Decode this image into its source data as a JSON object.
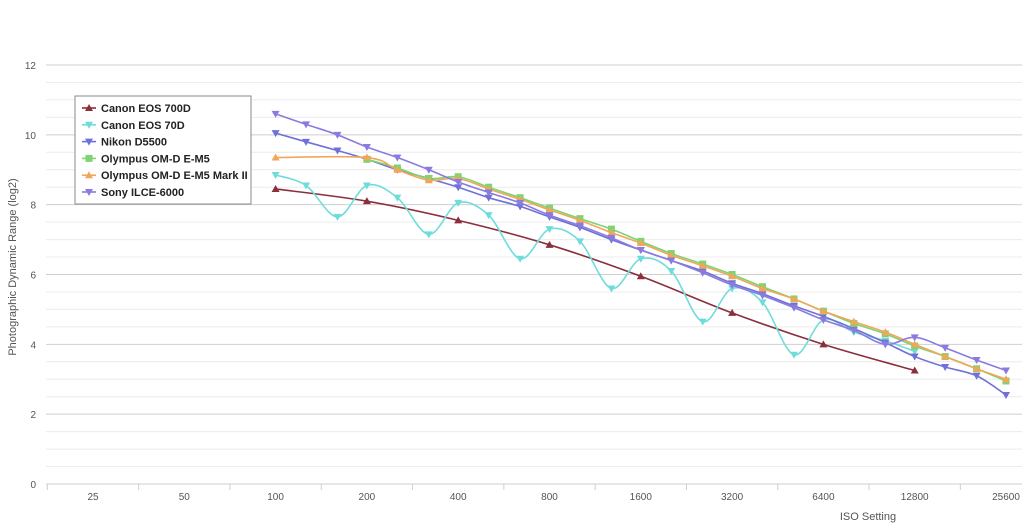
{
  "chart_data": {
    "type": "line",
    "title": "",
    "xlabel": "ISO Setting",
    "ylabel": "Photographic Dynamic Range (log2)",
    "x_scale": "log2",
    "x_ticks": [
      25,
      50,
      100,
      200,
      400,
      800,
      1600,
      3200,
      6400,
      12800,
      25600
    ],
    "x_tick_labels": [
      "25",
      "50",
      "100",
      "200",
      "400",
      "800",
      "1600",
      "3200",
      "6400",
      "12800",
      "25600"
    ],
    "ylim": [
      0,
      12
    ],
    "y_ticks": [
      0,
      2,
      4,
      6,
      8,
      10,
      12
    ],
    "y_tick_labels": [
      "0",
      "2",
      "4",
      "6",
      "8",
      "10",
      "12"
    ],
    "grid": true,
    "legend_position": "top-left",
    "series": [
      {
        "name": "Canon EOS 700D",
        "color": "#8b2f3c",
        "marker": "triangle-up",
        "x": [
          100,
          200,
          400,
          800,
          1600,
          3200,
          6400,
          12800
        ],
        "y": [
          8.45,
          8.1,
          7.55,
          6.85,
          5.95,
          4.9,
          4.0,
          3.25
        ]
      },
      {
        "name": "Canon EOS 70D",
        "color": "#6fdcdc",
        "marker": "triangle-down",
        "x": [
          100,
          126,
          160,
          200,
          252,
          320,
          400,
          504,
          640,
          800,
          1008,
          1280,
          1600,
          2016,
          2560,
          3200,
          4032,
          5120,
          6400,
          8064,
          10240,
          12800
        ],
        "y": [
          8.85,
          8.55,
          7.65,
          8.55,
          8.2,
          7.15,
          8.05,
          7.7,
          6.45,
          7.3,
          6.95,
          5.6,
          6.45,
          6.1,
          4.65,
          5.6,
          5.2,
          3.7,
          4.7,
          4.35,
          4.1,
          3.8
        ]
      },
      {
        "name": "Nikon D5500",
        "color": "#6f70d8",
        "marker": "triangle-down",
        "x": [
          100,
          126,
          160,
          200,
          252,
          320,
          400,
          504,
          640,
          800,
          1008,
          1280,
          1600,
          2016,
          2560,
          3200,
          4032,
          5120,
          6400,
          8064,
          10240,
          12800,
          16128,
          20480,
          25600
        ],
        "y": [
          10.05,
          9.8,
          9.55,
          9.3,
          9.0,
          8.75,
          8.5,
          8.2,
          7.95,
          7.65,
          7.35,
          7.0,
          6.7,
          6.4,
          6.1,
          5.75,
          5.45,
          5.1,
          4.8,
          4.45,
          4.05,
          3.65,
          3.35,
          3.1,
          2.55
        ]
      },
      {
        "name": "Olympus OM-D E-M5",
        "color": "#7ed470",
        "marker": "square",
        "x": [
          200,
          252,
          320,
          400,
          504,
          640,
          800,
          1008,
          1280,
          1600,
          2016,
          2560,
          3200,
          4032,
          5120,
          6400,
          8064,
          10240,
          12800,
          16128,
          20480,
          25600
        ],
        "y": [
          9.3,
          9.05,
          8.75,
          8.8,
          8.5,
          8.2,
          7.9,
          7.6,
          7.3,
          6.95,
          6.6,
          6.3,
          6.0,
          5.65,
          5.3,
          4.95,
          4.6,
          4.3,
          3.95,
          3.65,
          3.3,
          2.95
        ]
      },
      {
        "name": "Olympus OM-D E-M5 Mark II",
        "color": "#f2a65a",
        "marker": "triangle-up",
        "x": [
          100,
          200,
          252,
          320,
          400,
          504,
          640,
          800,
          1008,
          1280,
          1600,
          2016,
          2560,
          3200,
          4032,
          5120,
          6400,
          8064,
          10240,
          12800,
          16128,
          20480,
          25600
        ],
        "y": [
          9.35,
          9.35,
          9.0,
          8.7,
          8.75,
          8.45,
          8.15,
          7.85,
          7.55,
          7.2,
          6.9,
          6.55,
          6.25,
          5.95,
          5.6,
          5.3,
          4.95,
          4.65,
          4.35,
          4.0,
          3.65,
          3.3,
          3.0
        ]
      },
      {
        "name": "Sony ILCE-6000",
        "color": "#8a7be0",
        "marker": "triangle-down",
        "x": [
          100,
          126,
          160,
          200,
          252,
          320,
          400,
          504,
          640,
          800,
          1008,
          1280,
          1600,
          2016,
          2560,
          3200,
          4032,
          5120,
          6400,
          8064,
          10240,
          12800,
          16128,
          20480,
          25600
        ],
        "y": [
          10.6,
          10.3,
          10.0,
          9.65,
          9.35,
          9.0,
          8.65,
          8.35,
          8.05,
          7.7,
          7.4,
          7.05,
          6.7,
          6.4,
          6.05,
          5.7,
          5.4,
          5.05,
          4.7,
          4.4,
          4.0,
          4.2,
          3.9,
          3.55,
          3.25
        ]
      }
    ]
  }
}
